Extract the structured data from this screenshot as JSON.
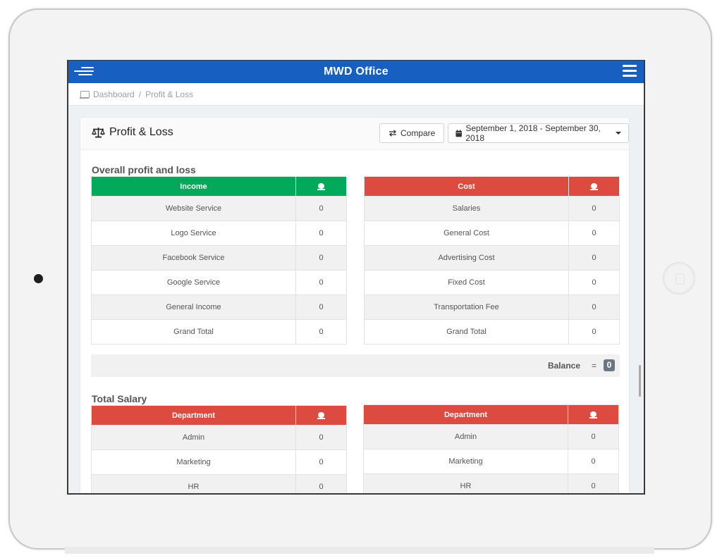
{
  "app": {
    "title": "MWD Office"
  },
  "breadcrumb": {
    "home": "Dashboard",
    "separator": "/",
    "current": "Profit & Loss"
  },
  "card": {
    "title": "Profit & Loss",
    "compare_label": "Compare",
    "date_range": "September 1, 2018 - September 30, 2018"
  },
  "overall": {
    "title": "Overall profit and loss",
    "income": {
      "header": "Income",
      "rows": [
        {
          "label": "Website Service",
          "value": "0"
        },
        {
          "label": "Logo Service",
          "value": "0"
        },
        {
          "label": "Facebook Service",
          "value": "0"
        },
        {
          "label": "Google Service",
          "value": "0"
        },
        {
          "label": "General Income",
          "value": "0"
        },
        {
          "label": "Grand Total",
          "value": "0"
        }
      ]
    },
    "cost": {
      "header": "Cost",
      "rows": [
        {
          "label": "Salaries",
          "value": "0"
        },
        {
          "label": "General Cost",
          "value": "0"
        },
        {
          "label": "Advertising Cost",
          "value": "0"
        },
        {
          "label": "Fixed Cost",
          "value": "0"
        },
        {
          "label": "Transportation Fee",
          "value": "0"
        },
        {
          "label": "Grand Total",
          "value": "0"
        }
      ]
    },
    "balance": {
      "label": "Balance",
      "equals": "=",
      "value": "0"
    }
  },
  "salary": {
    "title": "Total Salary",
    "left": {
      "header": "Department",
      "rows": [
        {
          "label": "Admin",
          "value": "0"
        },
        {
          "label": "Marketing",
          "value": "0"
        },
        {
          "label": "HR",
          "value": "0"
        }
      ]
    },
    "right": {
      "header": "Department",
      "rows": [
        {
          "label": "Admin",
          "value": "0"
        },
        {
          "label": "Marketing",
          "value": "0"
        },
        {
          "label": "HR",
          "value": "0"
        }
      ]
    }
  },
  "colors": {
    "topbar": "#175fc0",
    "income_header": "#02a95a",
    "cost_header": "#dd4a3f",
    "badge": "#6b7682"
  },
  "icons": {
    "menu_toggle": "sidebar-toggle-icon",
    "hamburger": "hamburger-menu-icon",
    "breadcrumb": "laptop-icon",
    "title": "balance-scale-icon",
    "compare": "exchange-arrows-icon",
    "date": "calendar-icon",
    "amount": "money-icon"
  }
}
